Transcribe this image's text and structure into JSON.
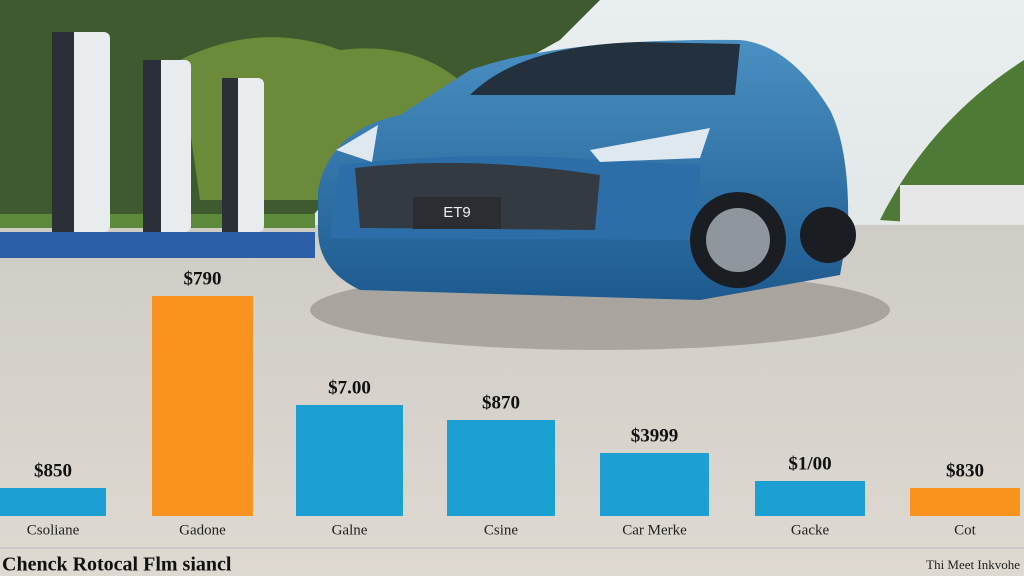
{
  "chart_data": {
    "type": "bar",
    "title": "Chenck Rotocal Flm siancl",
    "caption": "Thi Meet Inkvohe",
    "plate": "ET9",
    "categories": [
      "Csoliane",
      "Gadone",
      "Galne",
      "Csine",
      "Car Merke",
      "Gacke",
      "Cot"
    ],
    "values": [
      28,
      220,
      111,
      96,
      63,
      35,
      28
    ],
    "annotations": [
      "$850",
      "$790",
      "$7.00",
      "$870",
      "$3999",
      "$1/00",
      "$830"
    ],
    "colors": [
      "#1c9fd2",
      "#f7931e",
      "#1c9fd2",
      "#1c9fd2",
      "#1c9fd2",
      "#1c9fd2",
      "#f7931e"
    ]
  }
}
